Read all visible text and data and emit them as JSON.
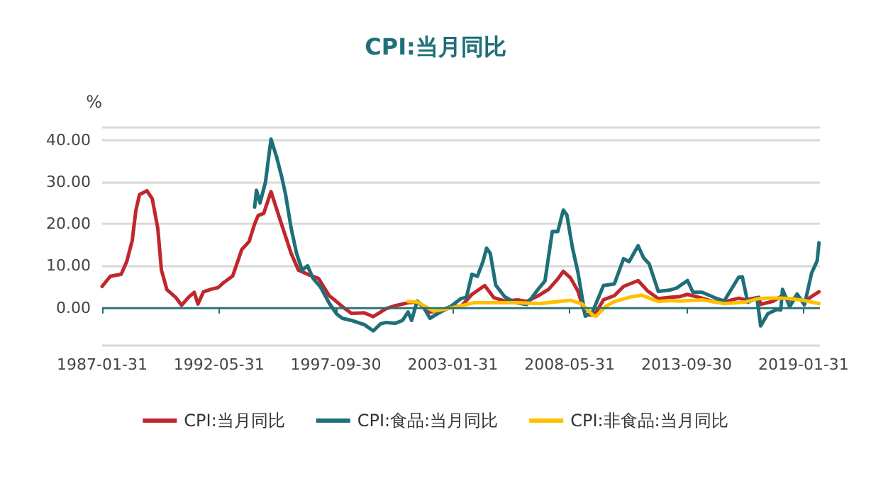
{
  "chart_data": {
    "type": "line",
    "title": "CPI:当月同比",
    "ylabel": "%",
    "marker": "none",
    "line_style": "solid",
    "grid": "y",
    "legend": "bottom",
    "xlim": [
      "1987-01-31",
      "2019-10-31"
    ],
    "xticks": [
      "1987-01-31",
      "1992-05-31",
      "1997-09-30",
      "2003-01-31",
      "2008-05-31",
      "2013-09-30",
      "2019-01-31"
    ],
    "ylim": [
      -9,
      43
    ],
    "ref_lines": [
      {
        "axis": "y",
        "value": 0,
        "label": null,
        "color": "#1f6f78",
        "line_style": "solid"
      }
    ],
    "yticks": [
      {
        "value": -9,
        "label": null
      },
      {
        "value": 0,
        "label": "0.00"
      },
      {
        "value": 10,
        "label": "10.00"
      },
      {
        "value": 20,
        "label": "20.00"
      },
      {
        "value": 30,
        "label": "30.00"
      },
      {
        "value": 40,
        "label": "40.00"
      },
      {
        "value": 43,
        "label": null
      }
    ],
    "series": [
      {
        "name": "CPI:当月同比",
        "color": "#c0272d",
        "x": [
          "1987-01-31",
          "1987-06",
          "1987-12",
          "1988-03",
          "1988-06",
          "1988-08",
          "1988-10",
          "1989-02",
          "1989-05",
          "1989-08",
          "1989-10",
          "1990-01",
          "1990-06",
          "1990-09",
          "1991-01",
          "1991-04",
          "1991-06",
          "1991-09",
          "1992-01",
          "1992-05",
          "1992-08",
          "1993-01",
          "1993-06",
          "1993-10",
          "1994-01",
          "1994-03",
          "1994-06",
          "1994-10",
          "1995-03",
          "1995-06",
          "1995-09",
          "1996-01",
          "1996-06",
          "1996-12",
          "1997-06",
          "1997-09",
          "1998-01",
          "1998-06",
          "1999-01",
          "1999-06",
          "2000-01",
          "2000-06",
          "2001-01",
          "2001-06",
          "2002-01",
          "2002-06",
          "2003-01",
          "2003-06",
          "2003-12",
          "2004-07",
          "2004-12",
          "2005-06",
          "2006-01",
          "2006-06",
          "2006-12",
          "2007-06",
          "2007-11",
          "2008-02",
          "2008-06",
          "2008-10",
          "2009-02",
          "2009-07",
          "2009-12",
          "2010-06",
          "2010-11",
          "2011-07",
          "2011-12",
          "2012-06",
          "2012-12",
          "2013-06",
          "2013-10",
          "2014-06",
          "2014-12",
          "2015-06",
          "2016-02",
          "2016-06",
          "2017-01",
          "2017-02",
          "2017-09",
          "2018-02",
          "2018-06",
          "2018-10",
          "2019-02",
          "2019-06",
          "2019-10"
        ],
        "values": [
          5.1,
          7.5,
          8.0,
          11,
          16,
          23.2,
          27,
          27.9,
          26,
          19,
          9,
          4.3,
          2.4,
          0.6,
          2.6,
          3.7,
          0.9,
          3.8,
          4.4,
          4.8,
          6,
          7.6,
          13.9,
          15.8,
          20,
          22,
          22.5,
          27.7,
          21,
          17,
          13,
          9,
          8,
          7,
          2.8,
          1.8,
          0.3,
          -1.3,
          -1.2,
          -2.1,
          -0.2,
          0.5,
          1.2,
          1.4,
          -1.0,
          -0.8,
          0.4,
          0.3,
          3.2,
          5.3,
          2.4,
          1.6,
          1.9,
          1.5,
          2.8,
          4.4,
          6.9,
          8.7,
          7.1,
          4.0,
          -1.6,
          -1.8,
          1.9,
          2.9,
          5.1,
          6.5,
          4.1,
          2.2,
          2.5,
          2.7,
          3.2,
          2.3,
          1.5,
          1.4,
          2.3,
          1.9,
          2.5,
          0.8,
          1.6,
          2.9,
          1.9,
          2.5,
          1.5,
          2.7,
          3.8
        ]
      },
      {
        "name": "CPI:食品:当月同比",
        "color": "#1f6f78",
        "x": [
          "1994-01",
          "1994-02",
          "1994-04",
          "1994-07",
          "1994-10",
          "1995-01",
          "1995-04",
          "1995-06",
          "1995-09",
          "1995-12",
          "1996-03",
          "1996-06",
          "1996-09",
          "1997-01",
          "1997-06",
          "1997-10",
          "1998-01",
          "1998-06",
          "1999-01",
          "1999-06",
          "1999-10",
          "2000-01",
          "2000-06",
          "2000-10",
          "2001-01",
          "2001-03",
          "2001-06",
          "2001-09",
          "2002-01",
          "2002-06",
          "2002-12",
          "2003-06",
          "2003-09",
          "2003-12",
          "2004-03",
          "2004-06",
          "2004-08",
          "2004-10",
          "2005-01",
          "2005-06",
          "2005-12",
          "2006-06",
          "2006-12",
          "2007-04",
          "2007-08",
          "2007-11",
          "2008-02",
          "2008-04",
          "2008-07",
          "2008-10",
          "2009-02",
          "2009-06",
          "2009-12",
          "2010-06",
          "2010-11",
          "2011-02",
          "2011-07",
          "2011-10",
          "2012-01",
          "2012-06",
          "2012-12",
          "2013-04",
          "2013-10",
          "2014-01",
          "2014-06",
          "2015-01",
          "2015-06",
          "2015-09",
          "2016-02",
          "2016-04",
          "2016-07",
          "2016-12",
          "2017-02",
          "2017-06",
          "2017-11",
          "2018-01",
          "2018-02",
          "2018-06",
          "2018-10",
          "2019-02",
          "2019-06",
          "2019-09",
          "2019-10"
        ],
        "values": [
          24,
          28,
          25,
          30,
          40.2,
          36,
          31,
          27,
          19,
          13,
          9,
          10,
          7,
          5,
          1,
          -1.5,
          -2.5,
          -3.0,
          -4,
          -5.5,
          -3.8,
          -3.5,
          -3.7,
          -3.0,
          -1,
          -3,
          1.6,
          0.5,
          -2.5,
          -1.2,
          0.2,
          2.2,
          2.5,
          8.0,
          7.5,
          11.0,
          14.2,
          13,
          5.4,
          2.6,
          1.2,
          0.8,
          4.3,
          6.4,
          18.2,
          18.2,
          23.3,
          22.1,
          14.4,
          8.5,
          -2.0,
          -1.0,
          5.3,
          5.7,
          11.7,
          11.0,
          14.8,
          11.9,
          10.5,
          3.9,
          4.2,
          4.7,
          6.5,
          3.7,
          3.7,
          2.4,
          1.6,
          3.7,
          7.3,
          7.4,
          1.3,
          2.4,
          -4.3,
          -1.4,
          -0.4,
          -0.5,
          4.4,
          0.3,
          3.3,
          0.7,
          8.3,
          11.2,
          15.5
        ]
      },
      {
        "name": "CPI:非食品:当月同比",
        "color": "#ffc000",
        "x": [
          "2001-01",
          "2001-06",
          "2002-03",
          "2003-01",
          "2004-01",
          "2005-01",
          "2006-01",
          "2007-01",
          "2008-06",
          "2008-12",
          "2009-06",
          "2009-08",
          "2010-01",
          "2010-06",
          "2011-03",
          "2011-09",
          "2012-06",
          "2012-12",
          "2013-06",
          "2014-06",
          "2015-06",
          "2016-01",
          "2016-06",
          "2017-01",
          "2017-06",
          "2018-01",
          "2018-06",
          "2019-01",
          "2019-10"
        ],
        "values": [
          1.5,
          1.4,
          -0.8,
          0,
          1.2,
          1.2,
          1.2,
          1.0,
          1.8,
          1.0,
          -1.7,
          -2.0,
          0.3,
          1.5,
          2.6,
          3.0,
          1.5,
          1.7,
          1.6,
          1.9,
          1.0,
          1.2,
          1.4,
          2.2,
          2.3,
          2.3,
          2.2,
          1.8,
          1.0
        ]
      }
    ]
  }
}
